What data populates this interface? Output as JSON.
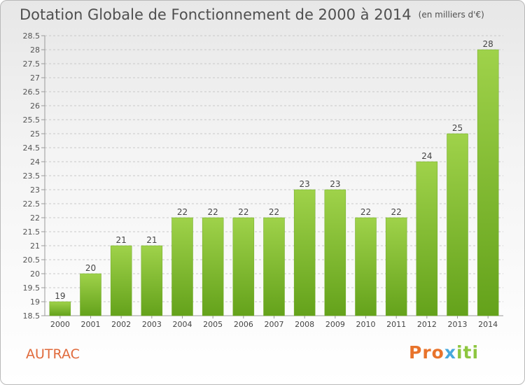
{
  "chart_data": {
    "type": "bar",
    "title": "Dotation Globale de Fonctionnement de 2000 à 2014",
    "subtitle": "(en milliers d'€)",
    "categories": [
      "2000",
      "2001",
      "2002",
      "2003",
      "2004",
      "2005",
      "2006",
      "2007",
      "2008",
      "2009",
      "2010",
      "2011",
      "2012",
      "2013",
      "2014"
    ],
    "values": [
      19,
      20,
      21,
      21,
      22,
      22,
      22,
      22,
      23,
      23,
      22,
      22,
      24,
      25,
      28
    ],
    "ylim": [
      18.5,
      28.5
    ],
    "yticks": [
      "18.5",
      "19",
      "19.5",
      "20",
      "20.5",
      "21",
      "21.5",
      "22",
      "22.5",
      "23",
      "23.5",
      "24",
      "24.5",
      "25",
      "25.5",
      "26",
      "26.5",
      "27",
      "27.5",
      "28",
      "28.5"
    ],
    "grid": "horizontal-dashed",
    "bar_color": "#7db22e",
    "xlabel": "",
    "ylabel": ""
  },
  "footer": {
    "location": "AUTRAC",
    "logo": {
      "part1": "Pro",
      "part2": "x",
      "part3": "iti"
    }
  }
}
